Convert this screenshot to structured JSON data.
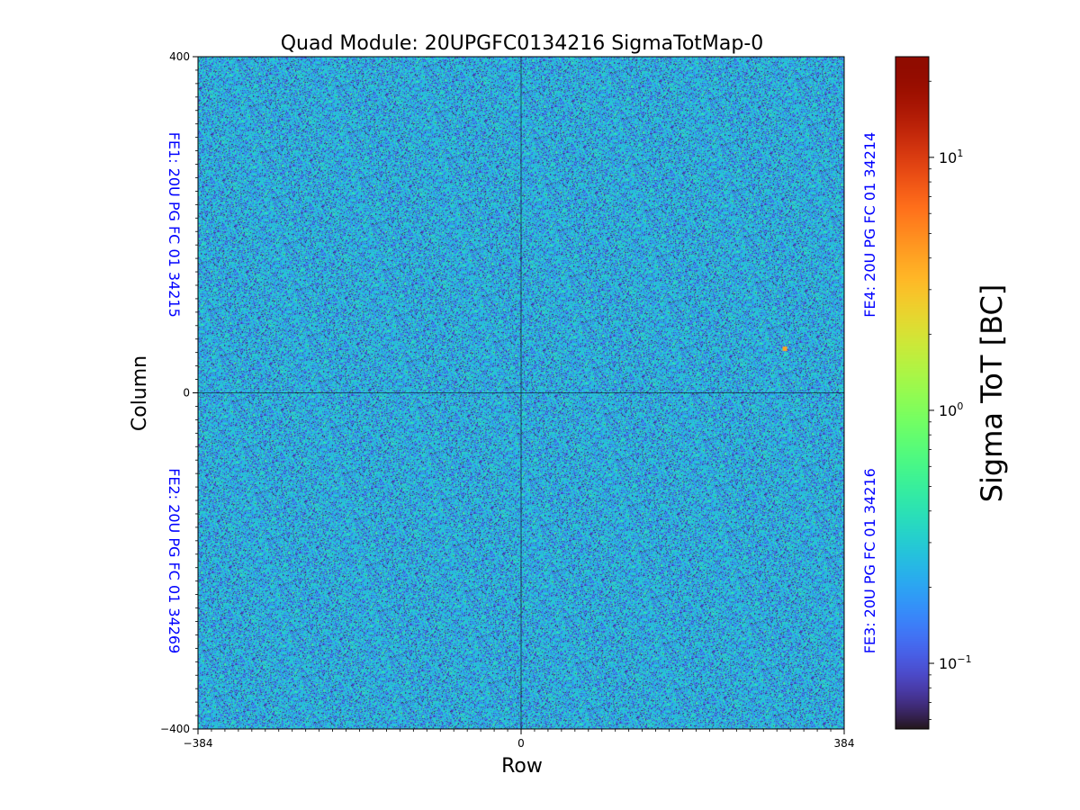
{
  "chart_data": {
    "type": "heatmap",
    "title": "Quad Module: 20UPGFC0134216 SigmaTotMap-0",
    "xlabel": "Row",
    "ylabel": "Column",
    "xlim": [
      -384,
      384
    ],
    "ylim": [
      -400,
      400
    ],
    "x_ticks": [
      -384,
      0,
      384
    ],
    "x_tick_labels": [
      "−384",
      "0",
      "384"
    ],
    "y_ticks": [
      400,
      0,
      -400
    ],
    "y_tick_labels": [
      "400",
      "0",
      "−400"
    ],
    "colorbar": {
      "label": "Sigma ToT [BC]",
      "scale": "log",
      "colormap": "turbo",
      "vmin": 0.055,
      "vmax": 25,
      "ticks": [
        0.1,
        1,
        10
      ],
      "tick_base": "10",
      "tick_exponents": [
        "−1",
        "0",
        "1"
      ]
    },
    "typical_value_range": [
      0.1,
      0.4
    ],
    "hot_pixels": [
      {
        "x": 313,
        "y": 53,
        "value": 4
      }
    ],
    "quadrant_labels": [
      {
        "label": "FE1: 20U PG FC 01 34215",
        "side": "left",
        "half": "top"
      },
      {
        "label": "FE2: 20U PG FC 01 34269",
        "side": "left",
        "half": "bottom"
      },
      {
        "label": "FE4: 20U PG FC 01 34214",
        "side": "right",
        "half": "top"
      },
      {
        "label": "FE3: 20U PG FC 01 34216",
        "side": "right",
        "half": "bottom"
      }
    ],
    "grid": false,
    "center_lines": true
  }
}
